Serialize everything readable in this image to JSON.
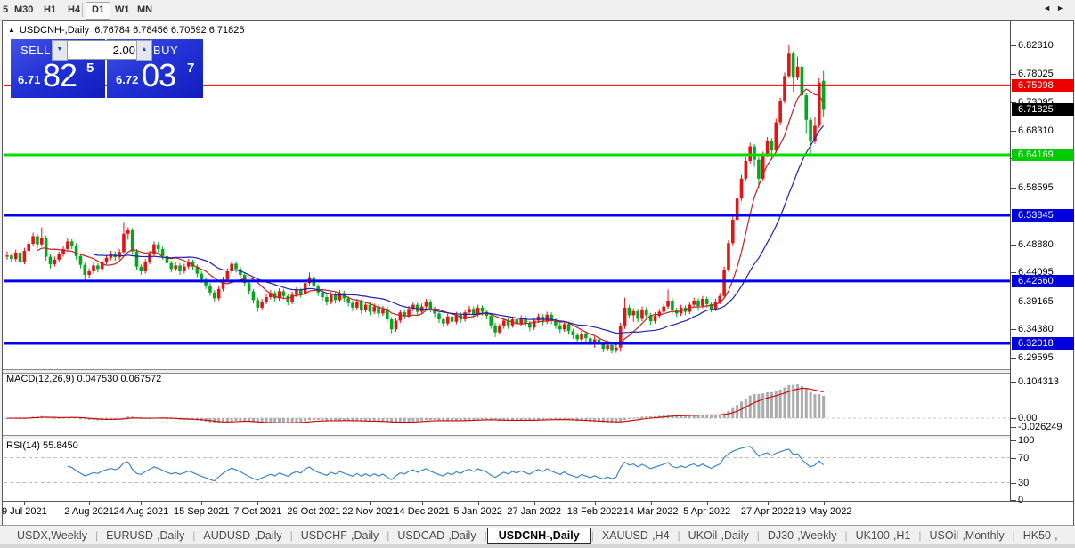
{
  "toolbar": {
    "periods": [
      "5",
      "M30",
      "H1",
      "H4",
      "D1",
      "W1",
      "MN"
    ],
    "active_period": "D1"
  },
  "chart": {
    "expander_icon": "▲",
    "title_symbol": "USDCNH-,Daily",
    "title_ohlc": "6.76784 6.78456 6.70592 6.71825"
  },
  "trade_panel": {
    "sell_label": "SELL",
    "buy_label": "BUY",
    "volume": "2.00",
    "down_arrow_icon": "▼",
    "up_arrow_icon": "▲",
    "sell_price_small": "6.71",
    "sell_price_big": "82",
    "sell_price_sup": "5",
    "buy_price_small": "6.72",
    "buy_price_big": "03",
    "buy_price_sup": "7",
    "panel_color": "#2433d6"
  },
  "chart_data": {
    "type": "candlestick",
    "symbol": "USDCNH-",
    "timeframe": "Daily",
    "last_ohlc": {
      "open": 6.76784,
      "high": 6.78456,
      "low": 6.70592,
      "close": 6.71825
    },
    "bull_color": "#e41414",
    "bear_color": "#00a81e",
    "ma_fast": {
      "period": 8,
      "color": "#c42222"
    },
    "ma_slow": {
      "period": 21,
      "color": "#2222aa"
    },
    "y_axis_ticks": [
      "6.82810",
      "6.78025",
      "6.73095",
      "6.68310",
      "6.63525",
      "6.58595",
      "6.48880",
      "6.44095",
      "6.39165",
      "6.34380",
      "6.29595"
    ],
    "price_badges": [
      {
        "text": "6.75998",
        "price": 6.75998,
        "bg": "#ee0000"
      },
      {
        "text": "6.71825",
        "price": 6.71825,
        "bg": "#000000"
      },
      {
        "text": "6.64169",
        "price": 6.64169,
        "bg": "#00cc00"
      },
      {
        "text": "6.53845",
        "price": 6.53845,
        "bg": "#0000dd"
      },
      {
        "text": "6.42660",
        "price": 6.4266,
        "bg": "#0000dd"
      },
      {
        "text": "6.32018",
        "price": 6.32018,
        "bg": "#0000dd"
      }
    ],
    "hlines": [
      {
        "price": 6.75998,
        "color": "#ee0000",
        "width": 2
      },
      {
        "price": 6.64169,
        "color": "#00dd00",
        "width": 3
      },
      {
        "price": 6.53845,
        "color": "#0000ee",
        "width": 3
      },
      {
        "price": 6.4266,
        "color": "#0000ee",
        "width": 3
      },
      {
        "price": 6.32018,
        "color": "#0000ee",
        "width": 3
      }
    ],
    "date_ticks": [
      {
        "label": "9 Jul 2021",
        "index": 4
      },
      {
        "label": "2 Aug 2021",
        "index": 19
      },
      {
        "label": "24 Aug 2021",
        "index": 31
      },
      {
        "label": "15 Sep 2021",
        "index": 45
      },
      {
        "label": "7 Oct 2021",
        "index": 58
      },
      {
        "label": "29 Oct 2021",
        "index": 71
      },
      {
        "label": "22 Nov 2021",
        "index": 84
      },
      {
        "label": "14 Dec 2021",
        "index": 96
      },
      {
        "label": "5 Jan 2022",
        "index": 109
      },
      {
        "label": "27 Jan 2022",
        "index": 122
      },
      {
        "label": "18 Feb 2022",
        "index": 136
      },
      {
        "label": "14 Mar 2022",
        "index": 149
      },
      {
        "label": "5 Apr 2022",
        "index": 162
      },
      {
        "label": "27 Apr 2022",
        "index": 176
      },
      {
        "label": "19 May 2022",
        "index": 189
      }
    ],
    "indicators": {
      "macd": {
        "label": "MACD(12,26,9) 0.047530 0.067572",
        "params": [
          12,
          26,
          9
        ],
        "value_main": 0.04753,
        "value_signal": 0.067572,
        "scale_labels": [
          "0.104313",
          "0.00",
          "-0.026249"
        ],
        "scale_values": [
          0.104313,
          0,
          -0.026249
        ],
        "bar_color": "#ababab",
        "signal_color": "#cc0000"
      },
      "rsi": {
        "label": "RSI(14) 55.8450",
        "period": 14,
        "value": 55.845,
        "scale_labels": [
          "100",
          "70",
          "30",
          "0"
        ],
        "scale_values": [
          100,
          70,
          30,
          0
        ],
        "levels": [
          70,
          30
        ],
        "line_color": "#3d85c8"
      }
    },
    "candles": [
      [
        6.468,
        6.477,
        6.463,
        6.47
      ],
      [
        6.47,
        6.474,
        6.458,
        6.464
      ],
      [
        6.464,
        6.48,
        6.46,
        6.475
      ],
      [
        6.475,
        6.478,
        6.452,
        6.459
      ],
      [
        6.459,
        6.483,
        6.455,
        6.478
      ],
      [
        6.478,
        6.495,
        6.474,
        6.49
      ],
      [
        6.49,
        6.509,
        6.486,
        6.503
      ],
      [
        6.503,
        6.507,
        6.482,
        6.489
      ],
      [
        6.489,
        6.518,
        6.485,
        6.5
      ],
      [
        6.5,
        6.504,
        6.461,
        6.468
      ],
      [
        6.468,
        6.472,
        6.448,
        6.455
      ],
      [
        6.455,
        6.468,
        6.451,
        6.463
      ],
      [
        6.463,
        6.477,
        6.459,
        6.472
      ],
      [
        6.472,
        6.486,
        6.468,
        6.481
      ],
      [
        6.481,
        6.499,
        6.477,
        6.494
      ],
      [
        6.494,
        6.498,
        6.481,
        6.487
      ],
      [
        6.487,
        6.491,
        6.463,
        6.469
      ],
      [
        6.469,
        6.473,
        6.448,
        6.454
      ],
      [
        6.454,
        6.458,
        6.427,
        6.437
      ],
      [
        6.437,
        6.448,
        6.432,
        6.443
      ],
      [
        6.443,
        6.458,
        6.439,
        6.453
      ],
      [
        6.453,
        6.457,
        6.441,
        6.447
      ],
      [
        6.447,
        6.464,
        6.443,
        6.459
      ],
      [
        6.459,
        6.471,
        6.455,
        6.466
      ],
      [
        6.466,
        6.478,
        6.462,
        6.473
      ],
      [
        6.473,
        6.477,
        6.461,
        6.467
      ],
      [
        6.467,
        6.481,
        6.463,
        6.476
      ],
      [
        6.476,
        6.526,
        6.472,
        6.507
      ],
      [
        6.507,
        6.518,
        6.497,
        6.513
      ],
      [
        6.513,
        6.517,
        6.471,
        6.477
      ],
      [
        6.477,
        6.481,
        6.445,
        6.451
      ],
      [
        6.451,
        6.455,
        6.437,
        6.443
      ],
      [
        6.443,
        6.464,
        6.439,
        6.459
      ],
      [
        6.459,
        6.478,
        6.455,
        6.473
      ],
      [
        6.473,
        6.494,
        6.469,
        6.489
      ],
      [
        6.489,
        6.493,
        6.475,
        6.481
      ],
      [
        6.481,
        6.485,
        6.463,
        6.469
      ],
      [
        6.469,
        6.473,
        6.451,
        6.457
      ],
      [
        6.457,
        6.461,
        6.441,
        6.447
      ],
      [
        6.447,
        6.458,
        6.443,
        6.453
      ],
      [
        6.453,
        6.457,
        6.437,
        6.443
      ],
      [
        6.443,
        6.456,
        6.439,
        6.451
      ],
      [
        6.451,
        6.464,
        6.447,
        6.459
      ],
      [
        6.459,
        6.463,
        6.445,
        6.451
      ],
      [
        6.451,
        6.455,
        6.433,
        6.439
      ],
      [
        6.439,
        6.443,
        6.423,
        6.429
      ],
      [
        6.429,
        6.433,
        6.413,
        6.419
      ],
      [
        6.419,
        6.423,
        6.401,
        6.407
      ],
      [
        6.407,
        6.411,
        6.391,
        6.397
      ],
      [
        6.397,
        6.418,
        6.393,
        6.413
      ],
      [
        6.413,
        6.434,
        6.409,
        6.429
      ],
      [
        6.429,
        6.448,
        6.425,
        6.443
      ],
      [
        6.443,
        6.461,
        6.439,
        6.456
      ],
      [
        6.456,
        6.46,
        6.441,
        6.447
      ],
      [
        6.447,
        6.451,
        6.431,
        6.437
      ],
      [
        6.437,
        6.441,
        6.417,
        6.423
      ],
      [
        6.423,
        6.427,
        6.403,
        6.409
      ],
      [
        6.409,
        6.413,
        6.388,
        6.394
      ],
      [
        6.394,
        6.398,
        6.374,
        6.381
      ],
      [
        6.381,
        6.396,
        6.377,
        6.391
      ],
      [
        6.391,
        6.404,
        6.387,
        6.399
      ],
      [
        6.399,
        6.411,
        6.395,
        6.406
      ],
      [
        6.406,
        6.41,
        6.391,
        6.397
      ],
      [
        6.397,
        6.414,
        6.393,
        6.409
      ],
      [
        6.409,
        6.413,
        6.395,
        6.401
      ],
      [
        6.401,
        6.405,
        6.385,
        6.391
      ],
      [
        6.391,
        6.408,
        6.387,
        6.403
      ],
      [
        6.403,
        6.416,
        6.399,
        6.411
      ],
      [
        6.411,
        6.415,
        6.398,
        6.404
      ],
      [
        6.404,
        6.428,
        6.4,
        6.423
      ],
      [
        6.423,
        6.441,
        6.419,
        6.433
      ],
      [
        6.433,
        6.437,
        6.411,
        6.417
      ],
      [
        6.417,
        6.421,
        6.401,
        6.407
      ],
      [
        6.407,
        6.411,
        6.393,
        6.399
      ],
      [
        6.399,
        6.403,
        6.385,
        6.391
      ],
      [
        6.391,
        6.408,
        6.387,
        6.403
      ],
      [
        6.403,
        6.407,
        6.388,
        6.394
      ],
      [
        6.394,
        6.411,
        6.39,
        6.406
      ],
      [
        6.406,
        6.41,
        6.391,
        6.397
      ],
      [
        6.397,
        6.401,
        6.383,
        6.389
      ],
      [
        6.389,
        6.393,
        6.375,
        6.381
      ],
      [
        6.381,
        6.396,
        6.377,
        6.391
      ],
      [
        6.391,
        6.395,
        6.371,
        6.377
      ],
      [
        6.377,
        6.391,
        6.373,
        6.386
      ],
      [
        6.386,
        6.39,
        6.368,
        6.374
      ],
      [
        6.374,
        6.388,
        6.37,
        6.383
      ],
      [
        6.383,
        6.387,
        6.365,
        6.371
      ],
      [
        6.371,
        6.384,
        6.367,
        6.379
      ],
      [
        6.379,
        6.383,
        6.355,
        6.361
      ],
      [
        6.361,
        6.365,
        6.337,
        6.344
      ],
      [
        6.344,
        6.364,
        6.34,
        6.359
      ],
      [
        6.359,
        6.378,
        6.355,
        6.373
      ],
      [
        6.373,
        6.377,
        6.361,
        6.367
      ],
      [
        6.367,
        6.384,
        6.363,
        6.379
      ],
      [
        6.379,
        6.391,
        6.375,
        6.386
      ],
      [
        6.386,
        6.39,
        6.368,
        6.374
      ],
      [
        6.374,
        6.388,
        6.37,
        6.383
      ],
      [
        6.383,
        6.396,
        6.379,
        6.391
      ],
      [
        6.391,
        6.395,
        6.373,
        6.379
      ],
      [
        6.379,
        6.383,
        6.365,
        6.371
      ],
      [
        6.371,
        6.375,
        6.355,
        6.361
      ],
      [
        6.361,
        6.365,
        6.348,
        6.354
      ],
      [
        6.354,
        6.371,
        6.35,
        6.366
      ],
      [
        6.366,
        6.37,
        6.351,
        6.357
      ],
      [
        6.357,
        6.374,
        6.353,
        6.369
      ],
      [
        6.369,
        6.373,
        6.355,
        6.361
      ],
      [
        6.361,
        6.378,
        6.357,
        6.373
      ],
      [
        6.373,
        6.384,
        6.369,
        6.379
      ],
      [
        6.379,
        6.383,
        6.363,
        6.369
      ],
      [
        6.369,
        6.386,
        6.365,
        6.381
      ],
      [
        6.381,
        6.385,
        6.368,
        6.374
      ],
      [
        6.374,
        6.378,
        6.361,
        6.367
      ],
      [
        6.367,
        6.371,
        6.345,
        6.351
      ],
      [
        6.351,
        6.355,
        6.331,
        6.339
      ],
      [
        6.339,
        6.354,
        6.335,
        6.349
      ],
      [
        6.349,
        6.364,
        6.345,
        6.359
      ],
      [
        6.359,
        6.363,
        6.345,
        6.351
      ],
      [
        6.351,
        6.366,
        6.347,
        6.361
      ],
      [
        6.361,
        6.365,
        6.348,
        6.354
      ],
      [
        6.354,
        6.368,
        6.35,
        6.363
      ],
      [
        6.363,
        6.367,
        6.348,
        6.354
      ],
      [
        6.354,
        6.358,
        6.341,
        6.347
      ],
      [
        6.347,
        6.364,
        6.343,
        6.359
      ],
      [
        6.359,
        6.371,
        6.355,
        6.366
      ],
      [
        6.366,
        6.37,
        6.351,
        6.357
      ],
      [
        6.357,
        6.374,
        6.353,
        6.369
      ],
      [
        6.369,
        6.373,
        6.353,
        6.359
      ],
      [
        6.359,
        6.363,
        6.345,
        6.351
      ],
      [
        6.351,
        6.355,
        6.338,
        6.344
      ],
      [
        6.344,
        6.358,
        6.34,
        6.353
      ],
      [
        6.353,
        6.357,
        6.335,
        6.341
      ],
      [
        6.341,
        6.345,
        6.328,
        6.334
      ],
      [
        6.334,
        6.338,
        6.321,
        6.327
      ],
      [
        6.327,
        6.342,
        6.323,
        6.337
      ],
      [
        6.337,
        6.341,
        6.323,
        6.329
      ],
      [
        6.329,
        6.333,
        6.315,
        6.321
      ],
      [
        6.321,
        6.332,
        6.313,
        6.327
      ],
      [
        6.327,
        6.331,
        6.313,
        6.319
      ],
      [
        6.319,
        6.323,
        6.305,
        6.311
      ],
      [
        6.311,
        6.322,
        6.307,
        6.317
      ],
      [
        6.317,
        6.321,
        6.303,
        6.309
      ],
      [
        6.309,
        6.318,
        6.304,
        6.313
      ],
      [
        6.313,
        6.355,
        6.306,
        6.349
      ],
      [
        6.349,
        6.398,
        6.345,
        6.381
      ],
      [
        6.381,
        6.386,
        6.362,
        6.368
      ],
      [
        6.368,
        6.38,
        6.357,
        6.375
      ],
      [
        6.375,
        6.379,
        6.356,
        6.362
      ],
      [
        6.362,
        6.383,
        6.358,
        6.378
      ],
      [
        6.378,
        6.382,
        6.362,
        6.368
      ],
      [
        6.368,
        6.372,
        6.352,
        6.358
      ],
      [
        6.358,
        6.373,
        6.354,
        6.367
      ],
      [
        6.367,
        6.379,
        6.363,
        6.374
      ],
      [
        6.374,
        6.388,
        6.37,
        6.383
      ],
      [
        6.383,
        6.412,
        6.379,
        6.393
      ],
      [
        6.393,
        6.397,
        6.371,
        6.377
      ],
      [
        6.377,
        6.381,
        6.365,
        6.371
      ],
      [
        6.371,
        6.386,
        6.367,
        6.381
      ],
      [
        6.381,
        6.385,
        6.368,
        6.374
      ],
      [
        6.374,
        6.391,
        6.37,
        6.386
      ],
      [
        6.386,
        6.398,
        6.382,
        6.393
      ],
      [
        6.393,
        6.397,
        6.378,
        6.384
      ],
      [
        6.384,
        6.401,
        6.38,
        6.396
      ],
      [
        6.396,
        6.4,
        6.381,
        6.387
      ],
      [
        6.387,
        6.391,
        6.373,
        6.379
      ],
      [
        6.379,
        6.396,
        6.375,
        6.391
      ],
      [
        6.391,
        6.406,
        6.387,
        6.401
      ],
      [
        6.401,
        6.451,
        6.397,
        6.446
      ],
      [
        6.446,
        6.496,
        6.442,
        6.491
      ],
      [
        6.491,
        6.537,
        6.487,
        6.531
      ],
      [
        6.531,
        6.573,
        6.527,
        6.567
      ],
      [
        6.567,
        6.607,
        6.563,
        6.601
      ],
      [
        6.601,
        6.637,
        6.597,
        6.631
      ],
      [
        6.631,
        6.662,
        6.627,
        6.656
      ],
      [
        6.656,
        6.66,
        6.621,
        6.633
      ],
      [
        6.633,
        6.637,
        6.586,
        6.601
      ],
      [
        6.601,
        6.647,
        6.597,
        6.641
      ],
      [
        6.641,
        6.672,
        6.637,
        6.666
      ],
      [
        6.666,
        6.67,
        6.633,
        6.649
      ],
      [
        6.649,
        6.703,
        6.645,
        6.697
      ],
      [
        6.697,
        6.739,
        6.693,
        6.733
      ],
      [
        6.733,
        6.782,
        6.729,
        6.776
      ],
      [
        6.776,
        6.828,
        6.772,
        6.814
      ],
      [
        6.814,
        6.818,
        6.749,
        6.773
      ],
      [
        6.773,
        6.809,
        6.769,
        6.792
      ],
      [
        6.792,
        6.796,
        6.716,
        6.743
      ],
      [
        6.743,
        6.747,
        6.677,
        6.701
      ],
      [
        6.701,
        6.705,
        6.641,
        6.664
      ],
      [
        6.664,
        6.706,
        6.66,
        6.691
      ],
      [
        6.691,
        6.772,
        6.687,
        6.765
      ],
      [
        6.76784,
        6.78456,
        6.70592,
        6.71825
      ]
    ]
  },
  "tabs": {
    "items": [
      "USDX,Weekly",
      "EURUSD-,Daily",
      "AUDUSD-,Daily",
      "USDCHF-,Daily",
      "USDCAD-,Daily",
      "USDCNH-,Daily",
      "XAUUSD-,H4",
      "UKOil-,Daily",
      "DJ30-,Weekly",
      "UK100-,H1",
      "USOil-,Monthly",
      "HK50-,"
    ],
    "active": "USDCNH-,Daily",
    "left_arrow_icon": "◄",
    "right_arrow_icon": "►"
  }
}
